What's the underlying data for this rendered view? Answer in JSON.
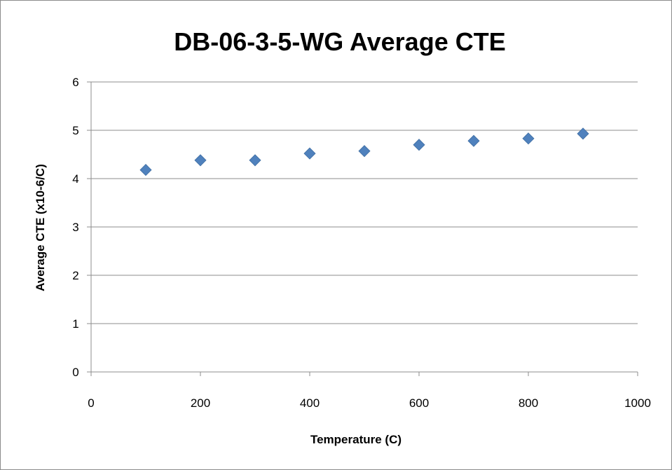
{
  "chart_data": {
    "type": "scatter",
    "title": "DB-06-3-5-WG Average CTE",
    "xlabel": "Temperature (C)",
    "ylabel": "Average CTE (x10-6/C)",
    "xlim": [
      0,
      1000
    ],
    "ylim": [
      0,
      6
    ],
    "x_ticks": [
      "0",
      "200",
      "400",
      "600",
      "800",
      "1000"
    ],
    "y_ticks": [
      "0",
      "1",
      "2",
      "3",
      "4",
      "5",
      "6"
    ],
    "grid": "horizontal",
    "legend": "none",
    "marker": "diamond",
    "series": [
      {
        "color": "#4f81bd",
        "points": [
          {
            "x": 100,
            "y": 4.18
          },
          {
            "x": 200,
            "y": 4.38
          },
          {
            "x": 300,
            "y": 4.38
          },
          {
            "x": 400,
            "y": 4.52
          },
          {
            "x": 500,
            "y": 4.57
          },
          {
            "x": 600,
            "y": 4.7
          },
          {
            "x": 700,
            "y": 4.78
          },
          {
            "x": 800,
            "y": 4.83
          },
          {
            "x": 900,
            "y": 4.93
          }
        ]
      }
    ]
  }
}
